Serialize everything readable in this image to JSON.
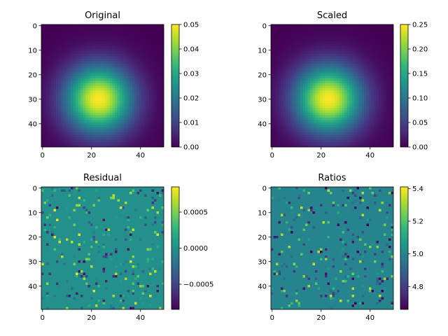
{
  "colormap": "viridis",
  "colormap_stops": [
    "#440154",
    "#482878",
    "#3e4989",
    "#31688e",
    "#26828e",
    "#1f9e89",
    "#35b779",
    "#6ece58",
    "#b5de2b",
    "#fde725"
  ],
  "background": "#ffffff",
  "chart_data": [
    {
      "type": "heatmap",
      "title": "Original",
      "grid_size": [
        50,
        50
      ],
      "field": {
        "kind": "gaussian_blob",
        "peak_center": [
          23,
          30
        ],
        "peak_value": 0.05,
        "sigma": 9.5
      },
      "xticks": [
        "0",
        "20",
        "40"
      ],
      "yticks": [
        "0",
        "10",
        "20",
        "30",
        "40"
      ],
      "xlim": [
        0,
        49
      ],
      "ylim": [
        0,
        49
      ],
      "colorbar": {
        "min": 0.0,
        "max": 0.05,
        "ticks": [
          "0.00",
          "0.01",
          "0.02",
          "0.03",
          "0.04",
          "0.05"
        ],
        "tick_values": [
          0.0,
          0.01,
          0.02,
          0.03,
          0.04,
          0.05
        ]
      }
    },
    {
      "type": "heatmap",
      "title": "Scaled",
      "grid_size": [
        50,
        50
      ],
      "field": {
        "kind": "gaussian_blob",
        "peak_center": [
          23,
          30
        ],
        "peak_value": 0.25,
        "sigma": 9.5
      },
      "xticks": [
        "0",
        "20",
        "40"
      ],
      "yticks": [
        "0",
        "10",
        "20",
        "30",
        "40"
      ],
      "xlim": [
        0,
        49
      ],
      "ylim": [
        0,
        49
      ],
      "colorbar": {
        "min": 0.0,
        "max": 0.25,
        "ticks": [
          "0.00",
          "0.05",
          "0.10",
          "0.15",
          "0.20",
          "0.25"
        ],
        "tick_values": [
          0.0,
          0.05,
          0.1,
          0.15,
          0.2,
          0.25
        ]
      }
    },
    {
      "type": "heatmap",
      "title": "Residual",
      "grid_size": [
        50,
        50
      ],
      "field": {
        "kind": "sparse_noise",
        "base_value": 0.0,
        "amplitude": 0.0008
      },
      "xticks": [
        "0",
        "20",
        "40"
      ],
      "yticks": [
        "0",
        "10",
        "20",
        "30",
        "40"
      ],
      "xlim": [
        0,
        49
      ],
      "ylim": [
        0,
        49
      ],
      "colorbar": {
        "min": -0.00085,
        "max": 0.00085,
        "ticks": [
          "0.0005",
          "0.0000",
          "−0.0005"
        ],
        "tick_values": [
          0.0005,
          0.0,
          -0.0005
        ]
      }
    },
    {
      "type": "heatmap",
      "title": "Ratios",
      "grid_size": [
        50,
        50
      ],
      "field": {
        "kind": "sparse_noise",
        "base_value": 5.0,
        "amplitude": 0.35
      },
      "xticks": [
        "0",
        "20",
        "40"
      ],
      "yticks": [
        "0",
        "10",
        "20",
        "30",
        "40"
      ],
      "xlim": [
        0,
        49
      ],
      "ylim": [
        0,
        49
      ],
      "colorbar": {
        "min": 4.66,
        "max": 5.41,
        "ticks": [
          "5.4",
          "5.2",
          "5.0",
          "4.8"
        ],
        "tick_values": [
          5.4,
          5.2,
          5.0,
          4.8
        ]
      }
    }
  ]
}
